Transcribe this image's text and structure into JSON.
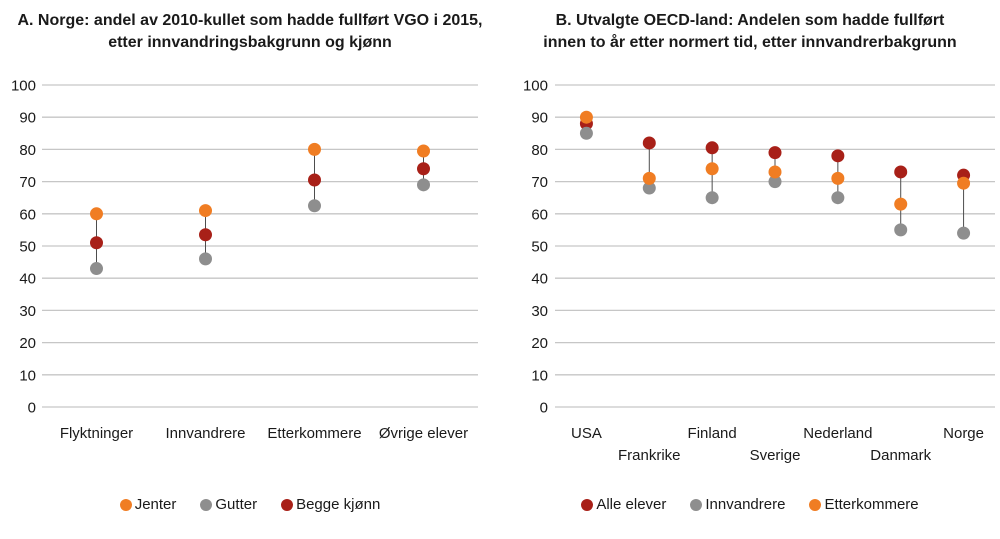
{
  "panels": [
    {
      "id": "A",
      "title_lines": [
        "A. Norge: andel av 2010-kullet som hadde fullført VGO i 2015,",
        "etter innvandringsbakgrunn og kjønn"
      ]
    },
    {
      "id": "B",
      "title_lines": [
        "B. Utvalgte OECD-land: Andelen som hadde fullført",
        "innen to år etter normert tid, etter innvandrerbakgrunn"
      ]
    }
  ],
  "colors": {
    "orange": "#F07D23",
    "gray": "#8E8E8E",
    "dark_red": "#A82018",
    "gridline": "#C6C6C6",
    "connector": "#4D4D4D",
    "text": "#1a1a1a"
  },
  "chart_data": [
    {
      "type": "scatter",
      "title": "A. Norge: andel av 2010-kullet som hadde fullført VGO i 2015, etter innvandringsbakgrunn og kjønn",
      "xlabel": "",
      "ylabel": "",
      "ylim": [
        0,
        100
      ],
      "ytick_step": 10,
      "grid": true,
      "legend_position": "bottom",
      "connector_lines": true,
      "stagger_labels": false,
      "categories": [
        "Flyktninger",
        "Innvandrere",
        "Etterkommere",
        "Øvrige elever"
      ],
      "series": [
        {
          "name": "Jenter",
          "color": "#F07D23",
          "values": [
            60,
            61,
            80,
            79.5
          ]
        },
        {
          "name": "Gutter",
          "color": "#8E8E8E",
          "values": [
            43,
            46,
            62.5,
            69
          ]
        },
        {
          "name": "Begge kjønn",
          "color": "#A82018",
          "values": [
            51,
            53.5,
            70.5,
            74
          ]
        }
      ]
    },
    {
      "type": "scatter",
      "title": "B. Utvalgte OECD-land: Andelen som hadde fullført innen to år etter normert tid, etter innvandrerbakgrunn",
      "xlabel": "",
      "ylabel": "",
      "ylim": [
        0,
        100
      ],
      "ytick_step": 10,
      "grid": true,
      "legend_position": "bottom",
      "connector_lines": true,
      "stagger_labels": true,
      "categories": [
        "USA",
        "Frankrike",
        "Finland",
        "Sverige",
        "Nederland",
        "Danmark",
        "Norge"
      ],
      "series": [
        {
          "name": "Alle elever",
          "color": "#A82018",
          "values": [
            88,
            82,
            80.5,
            79,
            78,
            73,
            72
          ]
        },
        {
          "name": "Innvandrere",
          "color": "#8E8E8E",
          "values": [
            85,
            68,
            65,
            70,
            65,
            55,
            54
          ]
        },
        {
          "name": "Etterkommere",
          "color": "#F07D23",
          "values": [
            90,
            71,
            74,
            73,
            71,
            63,
            69.5
          ]
        }
      ]
    }
  ]
}
